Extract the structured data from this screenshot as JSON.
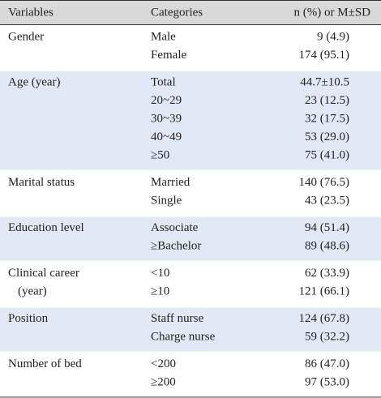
{
  "header": [
    "Variables",
    "Categories",
    "n (%) or M±SD"
  ],
  "groups": [
    {
      "variable": [
        "Gender"
      ],
      "rows": [
        [
          "Male",
          "9 (4.9)"
        ],
        [
          "Female",
          "174 (95.1)"
        ]
      ]
    },
    {
      "variable": [
        "Age (year)"
      ],
      "rows": [
        [
          "Total",
          "44.7±10.5"
        ],
        [
          "20~29",
          "23 (12.5)"
        ],
        [
          "30~39",
          "32 (17.5)"
        ],
        [
          "40~49",
          "53 (29.0)"
        ],
        [
          "≥50",
          "75 (41.0)"
        ]
      ]
    },
    {
      "variable": [
        "Marital status"
      ],
      "rows": [
        [
          "Married",
          "140 (76.5)"
        ],
        [
          "Single",
          "43 (23.5)"
        ]
      ]
    },
    {
      "variable": [
        "Education level"
      ],
      "rows": [
        [
          "Associate",
          "94 (51.4)"
        ],
        [
          "≥Bachelor",
          "89 (48.6)"
        ]
      ]
    },
    {
      "variable": [
        "Clinical career",
        "(year)"
      ],
      "rows": [
        [
          "<10",
          "62 (33.9)"
        ],
        [
          "≥10",
          "121 (66.1)"
        ]
      ]
    },
    {
      "variable": [
        "Position"
      ],
      "rows": [
        [
          "Staff nurse",
          "124 (67.8)"
        ],
        [
          "Charge nurse",
          "59 (32.2)"
        ]
      ]
    },
    {
      "variable": [
        "Number of bed"
      ],
      "rows": [
        [
          "<200",
          "86 (47.0)"
        ],
        [
          "≥200",
          "97 (53.0)"
        ]
      ]
    }
  ]
}
